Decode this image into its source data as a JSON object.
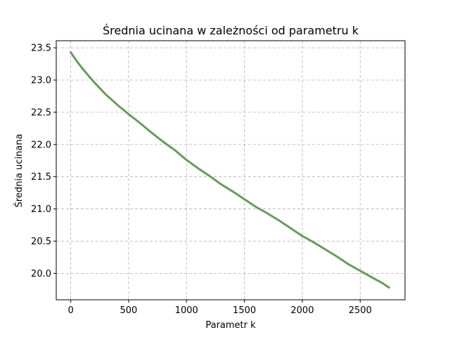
{
  "chart_data": {
    "type": "line",
    "title": "Średnia ucinana w zależności od parametru k",
    "xlabel": "Parametr k",
    "ylabel": "Średnia ucinana",
    "xlim": [
      -125,
      2887
    ],
    "ylim": [
      19.59,
      23.61
    ],
    "xticks": [
      0,
      500,
      1000,
      1500,
      2000,
      2500
    ],
    "xtick_labels": [
      "0",
      "500",
      "1000",
      "1500",
      "2000",
      "2500"
    ],
    "yticks": [
      20.0,
      20.5,
      21.0,
      21.5,
      22.0,
      22.5,
      23.0,
      23.5
    ],
    "ytick_labels": [
      "20.0",
      "20.5",
      "21.0",
      "21.5",
      "22.0",
      "22.5",
      "23.0",
      "23.5"
    ],
    "grid": true,
    "line_color": "#6a9a5e",
    "series": [
      {
        "x": [
          0,
          50,
          100,
          200,
          300,
          400,
          500,
          600,
          700,
          800,
          900,
          1000,
          1100,
          1200,
          1300,
          1400,
          1500,
          1600,
          1700,
          1800,
          1900,
          2000,
          2100,
          2200,
          2300,
          2400,
          2500,
          2600,
          2700,
          2750
        ],
        "values": [
          23.43,
          23.3,
          23.18,
          22.97,
          22.78,
          22.62,
          22.47,
          22.33,
          22.18,
          22.04,
          21.91,
          21.76,
          21.63,
          21.51,
          21.38,
          21.27,
          21.15,
          21.03,
          20.93,
          20.82,
          20.7,
          20.58,
          20.48,
          20.37,
          20.26,
          20.14,
          20.04,
          19.94,
          19.84,
          19.78
        ]
      }
    ]
  }
}
